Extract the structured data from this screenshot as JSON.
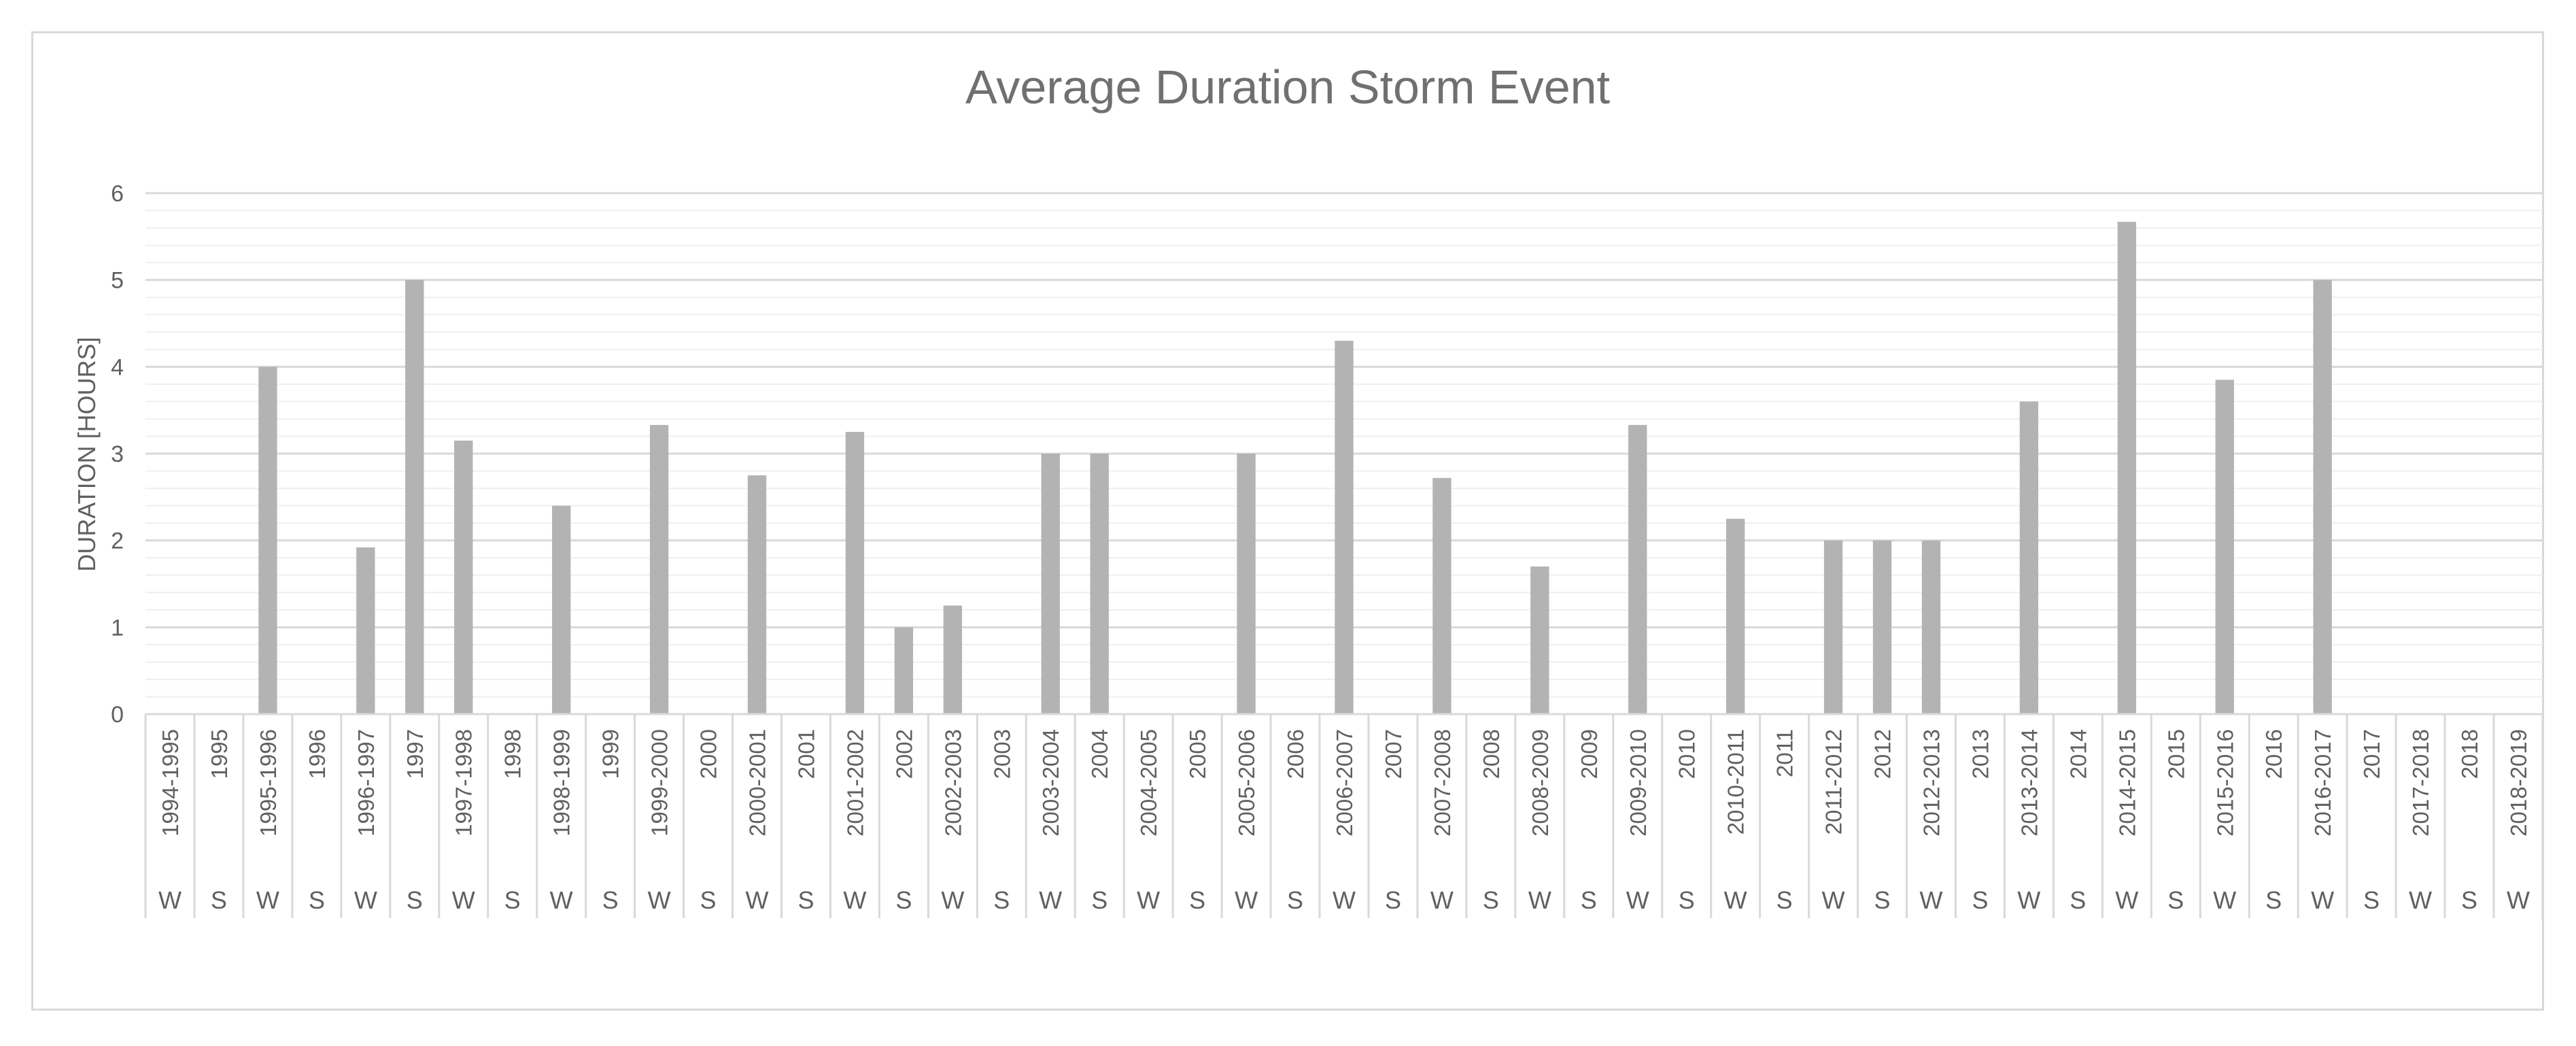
{
  "chart_data": {
    "type": "bar",
    "title": "Average Duration Storm Event",
    "xlabel": "",
    "ylabel": "DURATION [HOURS]",
    "ylim": [
      0,
      6
    ],
    "yticks": [
      "0",
      "1",
      "2",
      "3",
      "4",
      "5",
      "6"
    ],
    "grid": true,
    "legend": "none",
    "bar_color": "#b3b3b3",
    "categories": [
      "1994-1995",
      "1995",
      "1995-1996",
      "1996",
      "1996-1997",
      "1997",
      "1997-1998",
      "1998",
      "1998-1999",
      "1999",
      "1999-2000",
      "2000",
      "2000-2001",
      "2001",
      "2001-2002",
      "2002",
      "2002-2003",
      "2003",
      "2003-2004",
      "2004",
      "2004-2005",
      "2005",
      "2005-2006",
      "2006",
      "2006-2007",
      "2007",
      "2007-2008",
      "2008",
      "2008-2009",
      "2009",
      "2009-2010",
      "2010",
      "2010-2011",
      "2011",
      "2011-2012",
      "2012",
      "2012-2013",
      "2013",
      "2013-2014",
      "2014",
      "2014-2015",
      "2015",
      "2015-2016",
      "2016",
      "2016-2017",
      "2017",
      "2017-2018",
      "2018",
      "2018-2019"
    ],
    "seasons": [
      "W",
      "S",
      "W",
      "S",
      "W",
      "S",
      "W",
      "S",
      "W",
      "S",
      "W",
      "S",
      "W",
      "S",
      "W",
      "S",
      "W",
      "S",
      "W",
      "S",
      "W",
      "S",
      "W",
      "S",
      "W",
      "S",
      "W",
      "S",
      "W",
      "S",
      "W",
      "S",
      "W",
      "S",
      "W",
      "S",
      "W",
      "S",
      "W",
      "S",
      "W",
      "S",
      "W",
      "S",
      "W",
      "S",
      "W",
      "S",
      "W"
    ],
    "values": [
      0,
      0,
      4.0,
      0,
      1.92,
      5.0,
      3.15,
      0,
      2.4,
      0,
      3.33,
      0,
      2.75,
      0,
      3.25,
      1.0,
      1.25,
      0,
      3.0,
      3.0,
      0,
      0,
      3.0,
      0,
      4.3,
      0,
      2.72,
      0,
      1.7,
      0,
      3.33,
      0,
      2.25,
      0,
      2.0,
      2.0,
      2.0,
      0,
      3.6,
      0,
      5.67,
      0,
      3.85,
      0,
      5.0,
      0,
      0,
      0,
      0
    ]
  }
}
